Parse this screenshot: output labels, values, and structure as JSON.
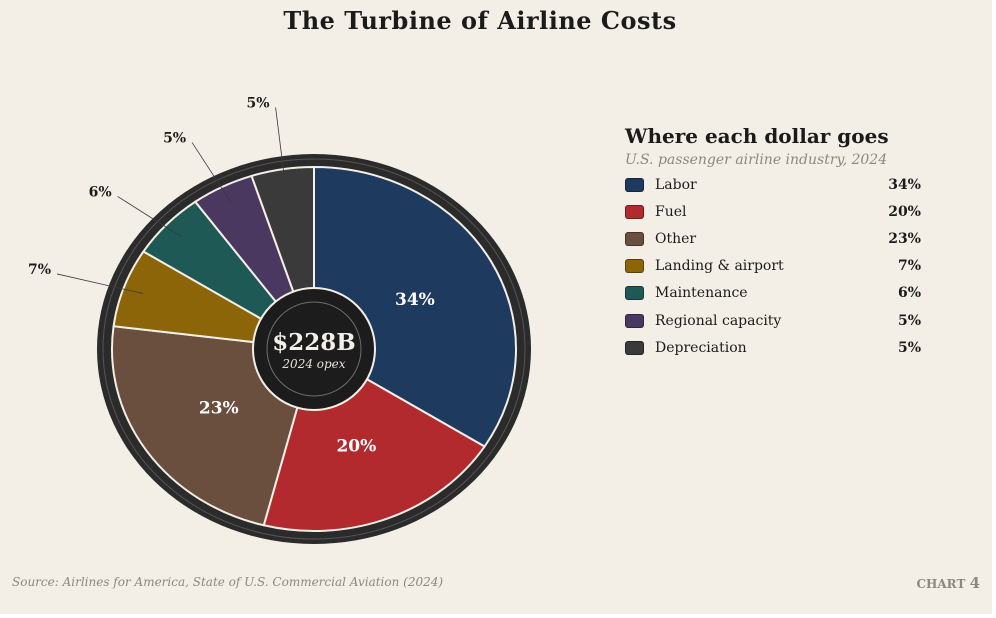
{
  "title": "The Turbine of Airline Costs",
  "center": {
    "value": "$228B",
    "caption": "2024 opex"
  },
  "legend": {
    "title": "Where each dollar goes",
    "subtitle": "U.S. passenger airline industry, 2024"
  },
  "source": "Source: Airlines for America, State of U.S. Commercial Aviation (2024)",
  "chart_tag": {
    "label": "CHART",
    "number": "4"
  },
  "colors": {
    "background": "#f3efe7",
    "ring": "#2b2b2b",
    "hub": "#1c1c1c",
    "text": "#1b1b1b",
    "muted": "#8c8880"
  },
  "chart_data": {
    "type": "pie",
    "style": "donut",
    "title": "The Turbine of Airline Costs",
    "total_label": "$228B",
    "slices": [
      {
        "label": "Labor",
        "value": 34,
        "display": "34%",
        "color": "#1f3a5f"
      },
      {
        "label": "Fuel",
        "value": 20,
        "display": "20%",
        "color": "#b2292e"
      },
      {
        "label": "Other",
        "value": 23,
        "display": "23%",
        "color": "#6a4e3e"
      },
      {
        "label": "Landing & airport",
        "value": 7,
        "display": "7%",
        "color": "#8b6508"
      },
      {
        "label": "Maintenance",
        "value": 6,
        "display": "6%",
        "color": "#1f5955"
      },
      {
        "label": "Regional capacity",
        "value": 5,
        "display": "5%",
        "color": "#4a3860"
      },
      {
        "label": "Depreciation",
        "value": 5,
        "display": "5%",
        "color": "#3a3a3a"
      }
    ],
    "legend_position": "right"
  }
}
